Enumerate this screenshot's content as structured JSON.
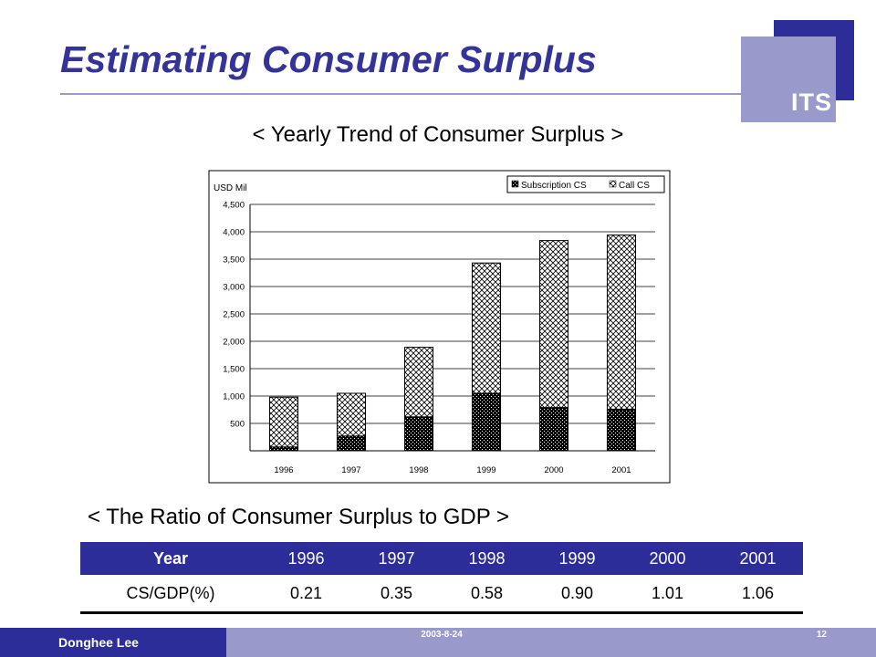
{
  "slide": {
    "title": "Estimating Consumer Surplus",
    "logo_text": "ITS",
    "chart_section_title": "< Yearly Trend of Consumer Surplus >",
    "table_section_title": "< The Ratio of Consumer Surplus to GDP >"
  },
  "footer": {
    "author": "Donghee Lee",
    "date": "2003-8-24",
    "page": "12"
  },
  "colors": {
    "dark_blue": "#2d2d99",
    "light_blue": "#9999cc",
    "title_blue": "#333399"
  },
  "chart_data": {
    "type": "bar",
    "stacked": true,
    "categories": [
      "1996",
      "1997",
      "1998",
      "1999",
      "2000",
      "2001"
    ],
    "series": [
      {
        "name": "Subscription CS",
        "values": [
          70,
          270,
          620,
          1050,
          790,
          760
        ],
        "pattern": "dotted-black"
      },
      {
        "name": "Call CS",
        "values": [
          910,
          780,
          1270,
          2380,
          3050,
          3180
        ],
        "pattern": "crosshatch"
      }
    ],
    "ylabel": "USD Mil",
    "ylim": [
      0,
      4500
    ],
    "yticks": [
      500,
      1000,
      1500,
      2000,
      2500,
      3000,
      3500,
      4000,
      4500
    ],
    "ytick_labels": [
      "500",
      "1,000",
      "1,500",
      "2,000",
      "2,500",
      "3,000",
      "3,500",
      "4,000",
      "4,500"
    ],
    "grid": true,
    "legend_position": "top-right"
  },
  "table": {
    "header_label": "Year",
    "years": [
      "1996",
      "1997",
      "1998",
      "1999",
      "2000",
      "2001"
    ],
    "row_label": "CS/GDP(%)",
    "values": [
      "0.21",
      "0.35",
      "0.58",
      "0.90",
      "1.01",
      "1.06"
    ]
  }
}
